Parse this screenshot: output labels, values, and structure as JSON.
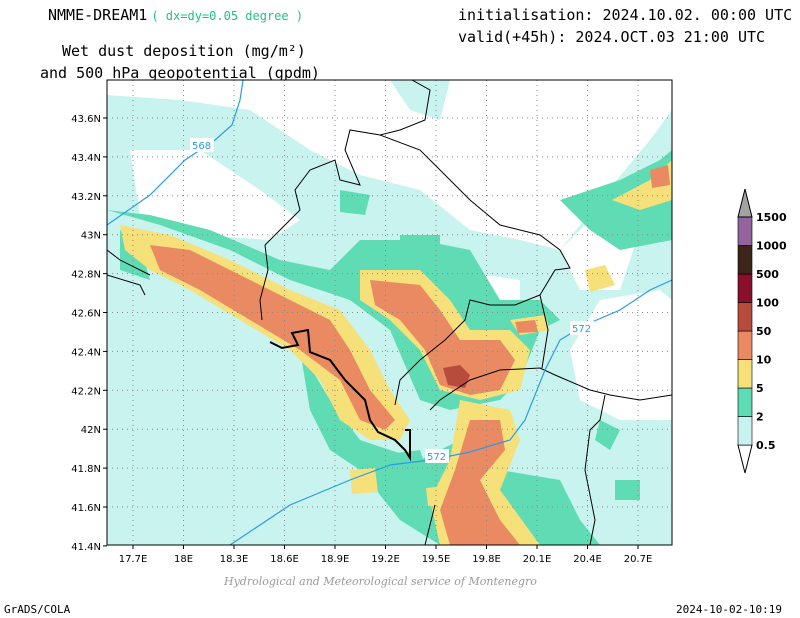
{
  "header": {
    "model": "NMME-DREAM1",
    "resolution": "( dx=dy=0.05 degree )",
    "initialisation": "initialisation: 2024.10.02. 00:00 UTC",
    "valid": "valid(+45h): 2024.OCT.03 21:00 UTC",
    "field_line1": "Wet dust deposition (mg/m²)",
    "field_line2": "and 500 hPa geopotential (gpdm)"
  },
  "map": {
    "lon_ticks": [
      "17.7E",
      "18E",
      "18.3E",
      "18.6E",
      "18.9E",
      "19.2E",
      "19.5E",
      "19.8E",
      "20.1E",
      "20.4E",
      "20.7E"
    ],
    "lat_ticks": [
      "43.6N",
      "43.4N",
      "43.2N",
      "43N",
      "42.8N",
      "42.6N",
      "42.4N",
      "42.2N",
      "42N",
      "41.8N",
      "41.6N",
      "41.4N"
    ],
    "contour_labels": [
      "568",
      "572",
      "572"
    ],
    "colors": {
      "contour": "#2a9be8",
      "border": "#000000"
    }
  },
  "colorbar": {
    "levels": [
      "0.5",
      "2",
      "5",
      "10",
      "50",
      "100",
      "500",
      "1000",
      "1500"
    ],
    "colors": [
      "#c8f3ef",
      "#5fdcb4",
      "#f6e07a",
      "#e98a63",
      "#b84c3c",
      "#8a0f2c",
      "#3c2418",
      "#93649e",
      "#a3a3a3"
    ]
  },
  "footer": {
    "credit": "Hydrological and Meteorological service of Montenegro",
    "software": "GrADS/COLA",
    "timestamp": "2024-10-02-10:19"
  }
}
